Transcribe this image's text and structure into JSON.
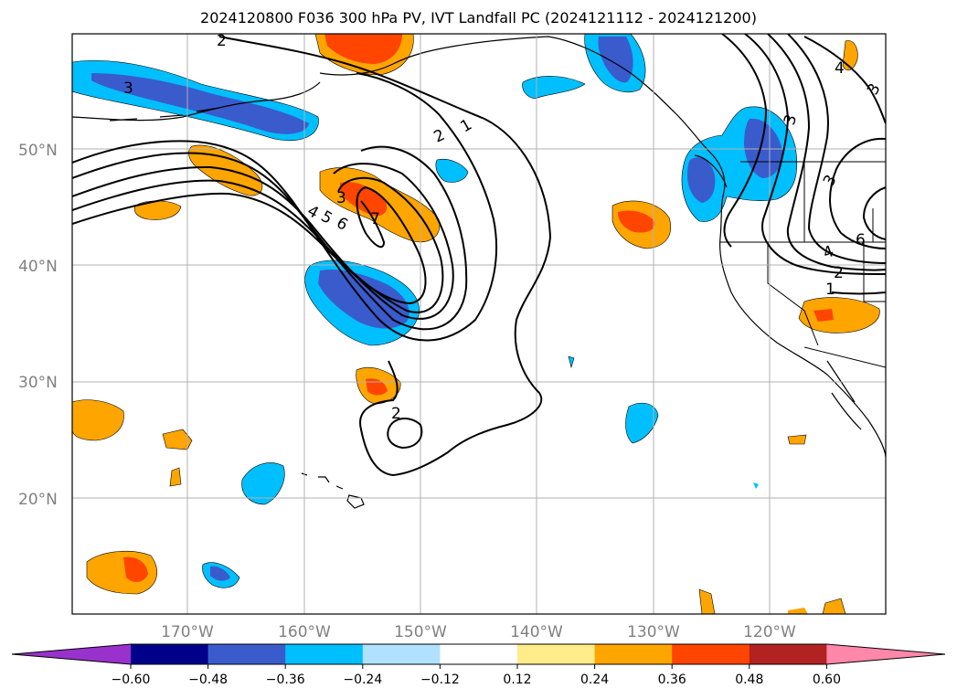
{
  "title": "2024120800 F036 300 hPa PV, IVT Landfall PC (2024121112 - 2024121200)",
  "lat_labels": [
    "50°N",
    "40°N",
    "30°N",
    "20°N"
  ],
  "lon_labels": [
    "170°W",
    "160°W",
    "150°W",
    "140°W",
    "130°W",
    "120°W"
  ],
  "colorbar": {
    "ticks": [
      "−0.60",
      "−0.48",
      "−0.36",
      "−0.24",
      "−0.12",
      "0.12",
      "0.24",
      "0.36",
      "0.48",
      "0.60"
    ],
    "colors": [
      "#9932cc",
      "#00008b",
      "#3a5bcc",
      "#00bfff",
      "#b0e2ff",
      "#ffffff",
      "#ffec8b",
      "#ffa500",
      "#ff4500",
      "#b22222",
      "#ff88aa"
    ]
  },
  "contour_labels": [
    "2",
    "3",
    "1",
    "2",
    "3",
    "4",
    "5",
    "6",
    "7",
    "2",
    "4",
    "3",
    "6",
    "4",
    "2",
    "1",
    "3",
    "3"
  ]
}
